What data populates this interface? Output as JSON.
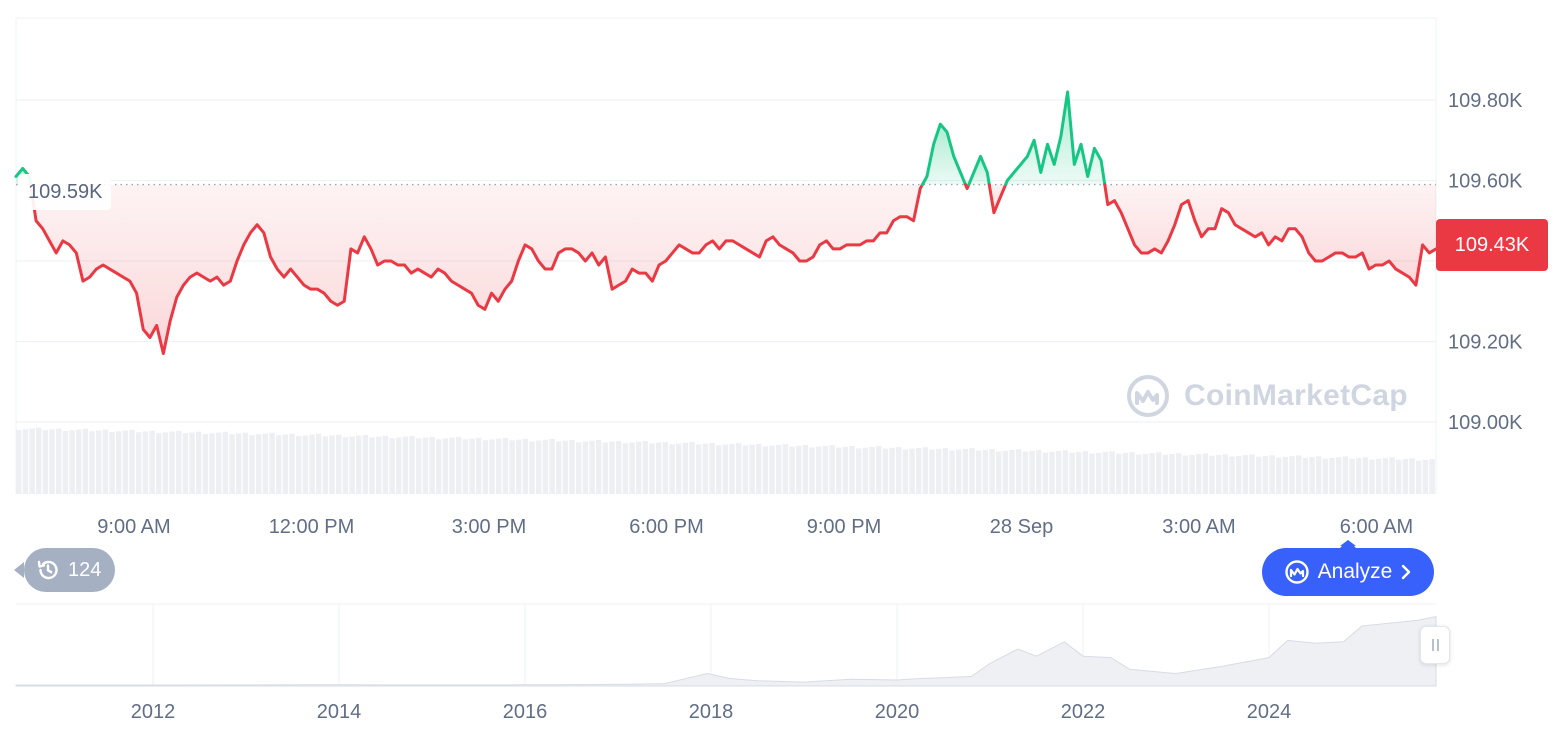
{
  "price_tag": "109.43K",
  "ref_tag": "109.59K",
  "watermark": "CoinMarketCap",
  "history_badge": "124",
  "analyze_label": "Analyze",
  "colors": {
    "up": "#16c784",
    "down": "#ea3943",
    "axis_text": "#616e85",
    "grid": "#eff2f5",
    "button": "#3861fb"
  },
  "icons": {
    "history": "history-clock-icon",
    "analyze": "coinmarketcap-logo-icon",
    "chevron": "chevron-right-icon"
  },
  "chart_data": [
    {
      "type": "line",
      "title": "",
      "reference_value": 109590,
      "last_value": 109430,
      "y_ticks": [
        "109.80K",
        "109.60K",
        "109.20K",
        "109.00K"
      ],
      "y_tick_values": [
        109800,
        109600,
        109200,
        109000
      ],
      "x_ticks": [
        "9:00 AM",
        "12:00 PM",
        "3:00 PM",
        "6:00 PM",
        "9:00 PM",
        "28 Sep",
        "3:00 AM",
        "6:00 AM"
      ],
      "ylim": [
        108800,
        110000
      ],
      "grid": true,
      "series": [
        {
          "values": [
            109610,
            109630,
            109610,
            109500,
            109480,
            109450,
            109420,
            109450,
            109440,
            109420,
            109350,
            109360,
            109380,
            109390,
            109380,
            109370,
            109360,
            109350,
            109320,
            109230,
            109210,
            109240,
            109170,
            109250,
            109310,
            109340,
            109360,
            109370,
            109360,
            109350,
            109360,
            109340,
            109350,
            109400,
            109440,
            109470,
            109490,
            109470,
            109410,
            109380,
            109360,
            109380,
            109360,
            109340,
            109330,
            109330,
            109320,
            109300,
            109290,
            109300,
            109430,
            109420,
            109460,
            109430,
            109390,
            109400,
            109400,
            109390,
            109390,
            109370,
            109380,
            109370,
            109360,
            109380,
            109370,
            109350,
            109340,
            109330,
            109320,
            109290,
            109280,
            109320,
            109300,
            109330,
            109350,
            109400,
            109440,
            109430,
            109400,
            109380,
            109380,
            109420,
            109430,
            109430,
            109420,
            109400,
            109420,
            109390,
            109410,
            109330,
            109340,
            109350,
            109380,
            109370,
            109370,
            109350,
            109390,
            109400,
            109420,
            109440,
            109430,
            109420,
            109420,
            109440,
            109450,
            109430,
            109450,
            109450,
            109440,
            109430,
            109420,
            109410,
            109450,
            109460,
            109440,
            109430,
            109420,
            109400,
            109400,
            109410,
            109440,
            109450,
            109430,
            109430,
            109440,
            109440,
            109440,
            109450,
            109450,
            109470,
            109470,
            109500,
            109510,
            109510,
            109500,
            109580,
            109610,
            109690,
            109740,
            109720,
            109660,
            109620,
            109580,
            109620,
            109660,
            109620,
            109520,
            109560,
            109600,
            109620,
            109640,
            109660,
            109700,
            109620,
            109690,
            109640,
            109710,
            109820,
            109640,
            109690,
            109610,
            109680,
            109650,
            109540,
            109550,
            109520,
            109480,
            109440,
            109420,
            109420,
            109430,
            109420,
            109450,
            109490,
            109540,
            109550,
            109500,
            109460,
            109480,
            109480,
            109530,
            109520,
            109490,
            109480,
            109470,
            109460,
            109470,
            109440,
            109460,
            109450,
            109480,
            109480,
            109460,
            109420,
            109400,
            109400,
            109410,
            109420,
            109420,
            109410,
            109410,
            109420,
            109380,
            109390,
            109390,
            109400,
            109380,
            109370,
            109360,
            109340,
            109440,
            109420,
            109430
          ]
        }
      ]
    },
    {
      "type": "area",
      "title": "",
      "x_ticks": [
        "2012",
        "2014",
        "2016",
        "2018",
        "2020",
        "2022",
        "2024"
      ],
      "x": [
        2010.5,
        2011,
        2012,
        2013,
        2014,
        2015,
        2016,
        2016.5,
        2017,
        2017.5,
        2017.96,
        2018.2,
        2018.5,
        2019,
        2019.5,
        2020,
        2020.25,
        2020.5,
        2020.8,
        2021,
        2021.3,
        2021.5,
        2021.8,
        2022,
        2022.3,
        2022.5,
        2022.9,
        2023,
        2023.5,
        2024,
        2024.2,
        2024.5,
        2024.8,
        2025,
        2025.3,
        2025.6,
        2025.8
      ],
      "values": [
        0,
        0,
        0,
        0.002,
        0.003,
        0.002,
        0.003,
        0.005,
        0.008,
        0.02,
        0.16,
        0.09,
        0.06,
        0.04,
        0.08,
        0.07,
        0.09,
        0.1,
        0.12,
        0.3,
        0.5,
        0.4,
        0.6,
        0.4,
        0.38,
        0.22,
        0.17,
        0.16,
        0.26,
        0.38,
        0.62,
        0.58,
        0.6,
        0.82,
        0.86,
        0.9,
        0.95
      ]
    }
  ]
}
